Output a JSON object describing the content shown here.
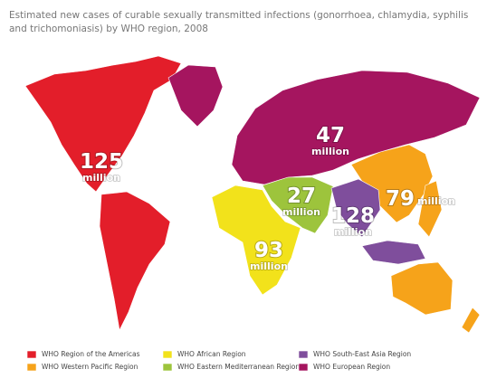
{
  "title_lines": [
    "Estimated new cases of curable sexually transmitted infections (gonorrhoea, chlamydia, syphilis",
    "and trichomoniasis) by WHO region, 2008"
  ],
  "regions": [
    {
      "name": "WHO Region of the Americas",
      "color": "#e31e2a",
      "value": 125,
      "unit": "million"
    },
    {
      "name": "WHO Western Pacific Region",
      "color": "#f6a31a",
      "value": 79,
      "unit": "million"
    },
    {
      "name": "WHO African Region",
      "color": "#f2e21b",
      "value": 93,
      "unit": "million"
    },
    {
      "name": "WHO Eastern Mediterranean Region",
      "color": "#9dc43c",
      "value": 27,
      "unit": "million"
    },
    {
      "name": "WHO South-East Asia Region",
      "color": "#7f4e9c",
      "value": 128,
      "unit": "million"
    },
    {
      "name": "WHO European Region",
      "color": "#a5155f",
      "value": 47,
      "unit": "million"
    }
  ]
}
